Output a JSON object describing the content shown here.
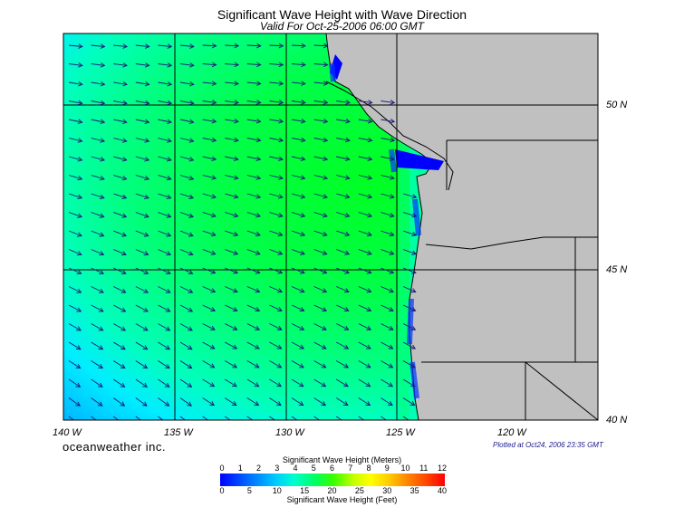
{
  "title": "Significant Wave Height with Wave Direction",
  "subtitle": "Valid For Oct-25-2006 06:00 GMT",
  "lon_labels": [
    "140 W",
    "135 W",
    "130 W",
    "125 W",
    "120 W"
  ],
  "lat_labels": [
    "50 N",
    "45 N",
    "40 N"
  ],
  "brand": "oceanweather inc.",
  "plotted": "Plotted at Oct24, 2006 23:35 GMT",
  "legend": {
    "meters_title": "Significant Wave Height (Meters)",
    "meters_ticks": [
      "0",
      "1",
      "2",
      "3",
      "4",
      "5",
      "6",
      "7",
      "8",
      "9",
      "10",
      "11",
      "12"
    ],
    "feet_title": "Significant Wave Height (Feet)",
    "feet_ticks": [
      "0",
      "5",
      "10",
      "15",
      "20",
      "25",
      "30",
      "35",
      "40"
    ]
  },
  "colors": {
    "land": "#c0c0c0",
    "deep_ocean_green": "#00ff33",
    "light_green": "#00ff7f",
    "cyan": "#00ffcc",
    "light_blue": "#00ccff",
    "coast_blue": "#0000ff",
    "arrow": "#1a1a7a"
  }
}
